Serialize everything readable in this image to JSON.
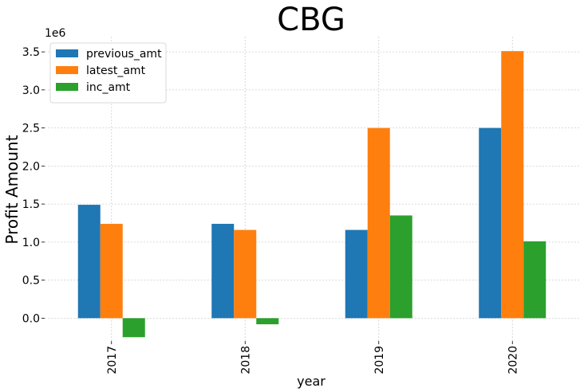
{
  "chart_data": {
    "type": "bar",
    "title": "CBG",
    "xlabel": "year",
    "ylabel": "Profit Amount",
    "y_offset_label": "1e6",
    "categories": [
      "2017",
      "2018",
      "2019",
      "2020"
    ],
    "series": [
      {
        "name": "previous_amt",
        "color": "#1f77b4",
        "values": [
          1.49,
          1.24,
          1.16,
          2.5
        ]
      },
      {
        "name": "latest_amt",
        "color": "#ff7f0e",
        "values": [
          1.24,
          1.16,
          2.5,
          3.51
        ]
      },
      {
        "name": "inc_amt",
        "color": "#2ca02c",
        "values": [
          -0.25,
          -0.08,
          1.35,
          1.01
        ]
      }
    ],
    "ylim": [
      -0.3,
      3.7
    ],
    "yticks": [
      0.0,
      0.5,
      1.0,
      1.5,
      2.0,
      2.5,
      3.0,
      3.5
    ],
    "ytick_labels": [
      "0.0",
      "0.5",
      "1.0",
      "1.5",
      "2.0",
      "2.5",
      "3.0",
      "3.5"
    ],
    "grid": true,
    "legend_position": "top-left"
  }
}
